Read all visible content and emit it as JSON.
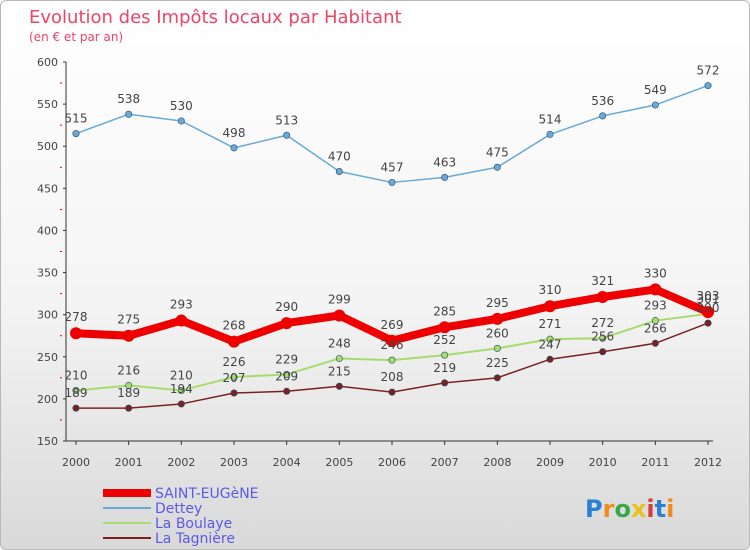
{
  "title": "Evolution des Impôts locaux par Habitant",
  "subtitle": "(en € et par an)",
  "logo": {
    "text": "Proxiti",
    "colors": [
      "#2a7fd4",
      "#f08a1a",
      "#39a845",
      "#e8c21a",
      "#d63a3a"
    ]
  },
  "chart_data": {
    "type": "line",
    "x": [
      "2000",
      "2001",
      "2002",
      "2003",
      "2004",
      "2005",
      "2006",
      "2007",
      "2008",
      "2009",
      "2010",
      "2011",
      "2012"
    ],
    "ylim": [
      150,
      600
    ],
    "yticks": [
      150,
      200,
      250,
      300,
      350,
      400,
      450,
      500,
      550,
      600
    ],
    "grid": false,
    "legend_position": "bottom-left",
    "series": [
      {
        "name": "SAINT-EUGèNE",
        "color": "#ee0000",
        "width": 8,
        "labelOffset": -12,
        "values": [
          278,
          275,
          293,
          268,
          290,
          299,
          269,
          285,
          295,
          310,
          321,
          330,
          303
        ]
      },
      {
        "name": "Dettey",
        "color": "#6aa9d6",
        "width": 1.5,
        "labelOffset": -11,
        "values": [
          515,
          538,
          530,
          498,
          513,
          470,
          457,
          463,
          475,
          514,
          536,
          549,
          572
        ]
      },
      {
        "name": "La Boulaye",
        "color": "#a6dc6e",
        "width": 2,
        "labelOffset": -11,
        "values": [
          210,
          216,
          210,
          226,
          229,
          248,
          246,
          252,
          260,
          271,
          272,
          293,
          301
        ]
      },
      {
        "name": "La Tagnière",
        "color": "#7a2222",
        "width": 1.5,
        "labelOffset": -11,
        "values": [
          189,
          189,
          194,
          207,
          209,
          215,
          208,
          219,
          225,
          247,
          256,
          266,
          290
        ]
      }
    ]
  }
}
